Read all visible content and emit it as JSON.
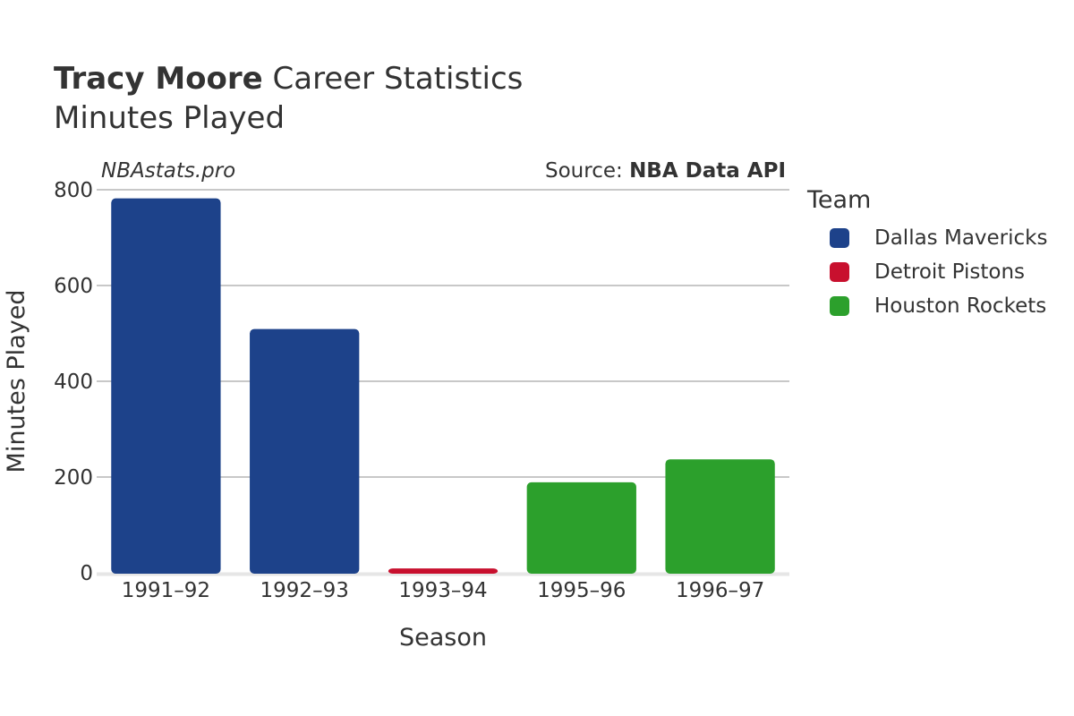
{
  "header": {
    "title_name": "Tracy Moore",
    "title_rest": "Career Statistics",
    "subtitle": "Minutes Played",
    "watermark": "NBAstats.pro",
    "source_label": "Source:",
    "source_value": "NBA Data API"
  },
  "legend": {
    "title": "Team",
    "items": [
      {
        "label": "Dallas Mavericks",
        "color": "#1d428a"
      },
      {
        "label": "Detroit Pistons",
        "color": "#c8102e"
      },
      {
        "label": "Houston Rockets",
        "color": "#2ca02c"
      }
    ]
  },
  "chart_data": {
    "type": "bar",
    "title": "Tracy Moore Career Statistics",
    "subtitle": "Minutes Played",
    "xlabel": "Season",
    "ylabel": "Minutes Played",
    "categories": [
      "1991–92",
      "1992–93",
      "1993–94",
      "1995–96",
      "1996–97"
    ],
    "values": [
      782,
      509,
      9,
      189,
      237
    ],
    "teams": [
      "Dallas Mavericks",
      "Dallas Mavericks",
      "Detroit Pistons",
      "Houston Rockets",
      "Houston Rockets"
    ],
    "ylim": [
      0,
      800
    ],
    "yticks": [
      0,
      200,
      400,
      600,
      800
    ],
    "grid": true,
    "legend_position": "right"
  }
}
